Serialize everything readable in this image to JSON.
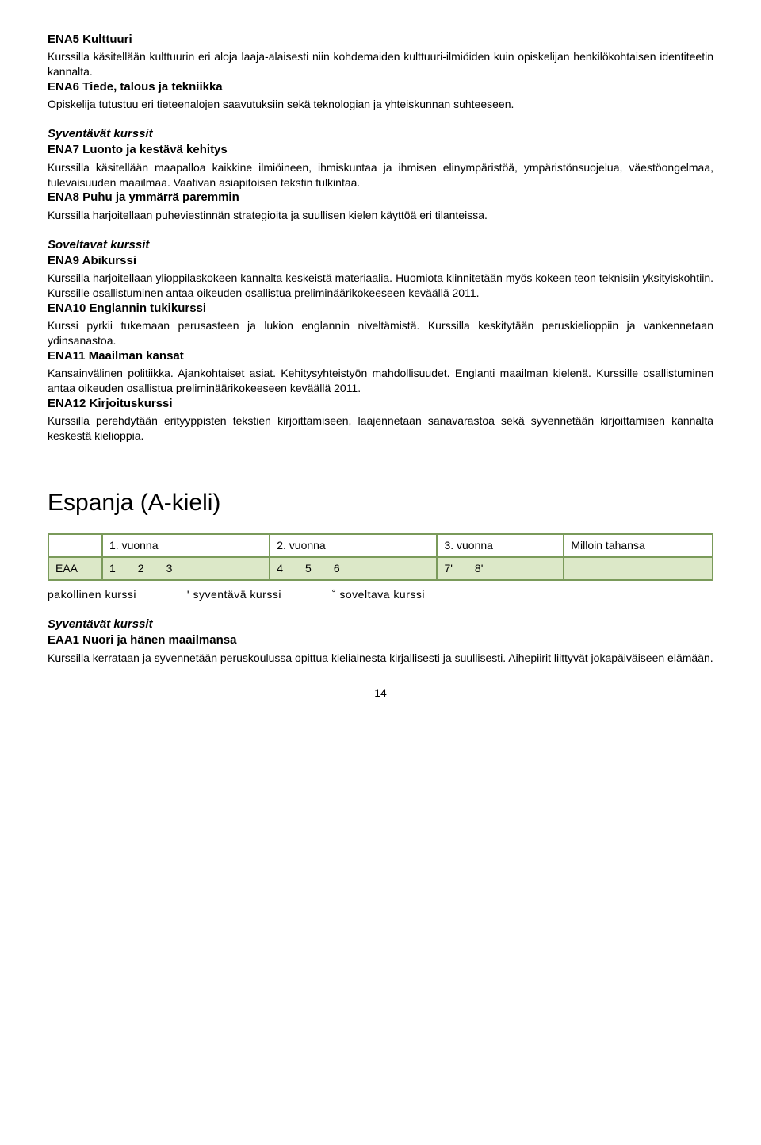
{
  "courses": [
    {
      "title": "ENA5 Kulttuuri",
      "body": "Kurssilla käsitellään kulttuurin eri aloja laaja-alaisesti niin kohdemaiden kulttuuri-ilmiöiden kuin opiskelijan henkilökohtaisen identiteetin kannalta."
    },
    {
      "title": "ENA6 Tiede, talous ja tekniikka",
      "body": "Opiskelija tutustuu eri tieteenalojen saavutuksiin sekä teknologian ja yhteiskunnan suhteeseen."
    }
  ],
  "syventavat_label_1": "Syventävät kurssit",
  "syventavat_courses": [
    {
      "title": "ENA7 Luonto ja kestävä kehitys",
      "body": "Kurssilla käsitellään maapalloa kaikkine ilmiöineen, ihmiskuntaa ja ihmisen elinympäristöä, ympäristönsuojelua, väestöongelmaa, tulevaisuuden maailmaa. Vaativan asiapitoisen tekstin tulkintaa."
    },
    {
      "title": "ENA8 Puhu ja ymmärrä paremmin",
      "body": "Kurssilla harjoitellaan puheviestinnän strategioita ja suullisen kielen käyttöä eri tilanteissa."
    }
  ],
  "soveltavat_label": "Soveltavat kurssit",
  "soveltavat_courses": [
    {
      "title": "ENA9 Abikurssi",
      "body": "Kurssilla harjoitellaan ylioppilaskokeen kannalta keskeistä materiaalia. Huomiota kiinnitetään myös kokeen teon teknisiin yksityiskohtiin. Kurssille osallistuminen antaa oikeuden osallistua preliminäärikokeeseen keväällä 2011."
    },
    {
      "title": "ENA10 Englannin tukikurssi",
      "body": "Kurssi pyrkii tukemaan perusasteen ja lukion englannin niveltämistä. Kurssilla keskitytään peruskielioppiin ja vankennetaan ydinsanastoa."
    },
    {
      "title": "ENA11 Maailman kansat",
      "body": "Kansainvälinen politiikka. Ajankohtaiset asiat. Kehitysyhteistyön mahdollisuudet. Englanti maailman kielenä. Kurssille osallistuminen antaa oikeuden osallistua preliminäärikokeeseen keväällä 2011."
    },
    {
      "title": "ENA12 Kirjoituskurssi",
      "body": "Kurssilla perehdytään erityyppisten tekstien kirjoittamiseen, laajennetaan sanavarastoa sekä syvennetään kirjoittamisen kannalta keskestä kielioppia."
    }
  ],
  "main_heading": "Espanja (A-kieli)",
  "table": {
    "headers": [
      "1. vuonna",
      "2. vuonna",
      "3. vuonna",
      "Milloin tahansa"
    ],
    "row_label": "EAA",
    "cells": [
      [
        "1",
        "2",
        "3"
      ],
      [
        "4",
        "5",
        "6"
      ],
      [
        "7'",
        "8'"
      ],
      []
    ]
  },
  "legend": {
    "a": "pakollinen kurssi",
    "b": "' syventävä kurssi",
    "c": "˚ soveltava kurssi"
  },
  "syventavat_label_2": "Syventävät kurssit",
  "eaa_course": {
    "title": "EAA1 Nuori ja hänen maailmansa",
    "body": "Kurssilla kerrataan ja syvennetään peruskoulussa opittua kieliainesta kirjallisesti ja suullisesti. Aihepiirit liittyvät jokapäiväiseen elämään."
  },
  "page_number": "14"
}
